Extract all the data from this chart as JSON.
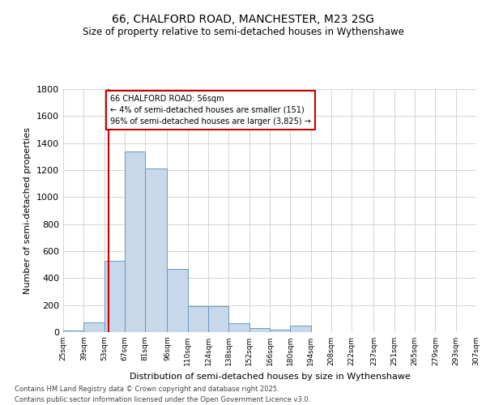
{
  "title1": "66, CHALFORD ROAD, MANCHESTER, M23 2SG",
  "title2": "Size of property relative to semi-detached houses in Wythenshawe",
  "xlabel": "Distribution of semi-detached houses by size in Wythenshawe",
  "ylabel": "Number of semi-detached properties",
  "footnote": "Contains HM Land Registry data © Crown copyright and database right 2025.\nContains public sector information licensed under the Open Government Licence v3.0.",
  "annotation_title": "66 CHALFORD ROAD: 56sqm",
  "annotation_line1": "← 4% of semi-detached houses are smaller (151)",
  "annotation_line2": "96% of semi-detached houses are larger (3,825) →",
  "property_size": 56,
  "bar_color": "#c8d8eb",
  "bar_edge_color": "#6699bb",
  "vline_color": "#cc0000",
  "annotation_box_color": "#cc0000",
  "background_color": "#ffffff",
  "grid_color": "#cccccc",
  "bins": [
    25,
    39,
    53,
    67,
    81,
    96,
    110,
    124,
    138,
    152,
    166,
    180,
    194,
    208,
    222,
    237,
    251,
    265,
    279,
    293,
    307
  ],
  "counts": [
    10,
    75,
    530,
    1340,
    1210,
    470,
    190,
    190,
    65,
    30,
    20,
    50,
    0,
    0,
    0,
    0,
    0,
    0,
    0,
    0
  ],
  "ylim": [
    0,
    1800
  ],
  "yticks": [
    0,
    200,
    400,
    600,
    800,
    1000,
    1200,
    1400,
    1600,
    1800
  ]
}
